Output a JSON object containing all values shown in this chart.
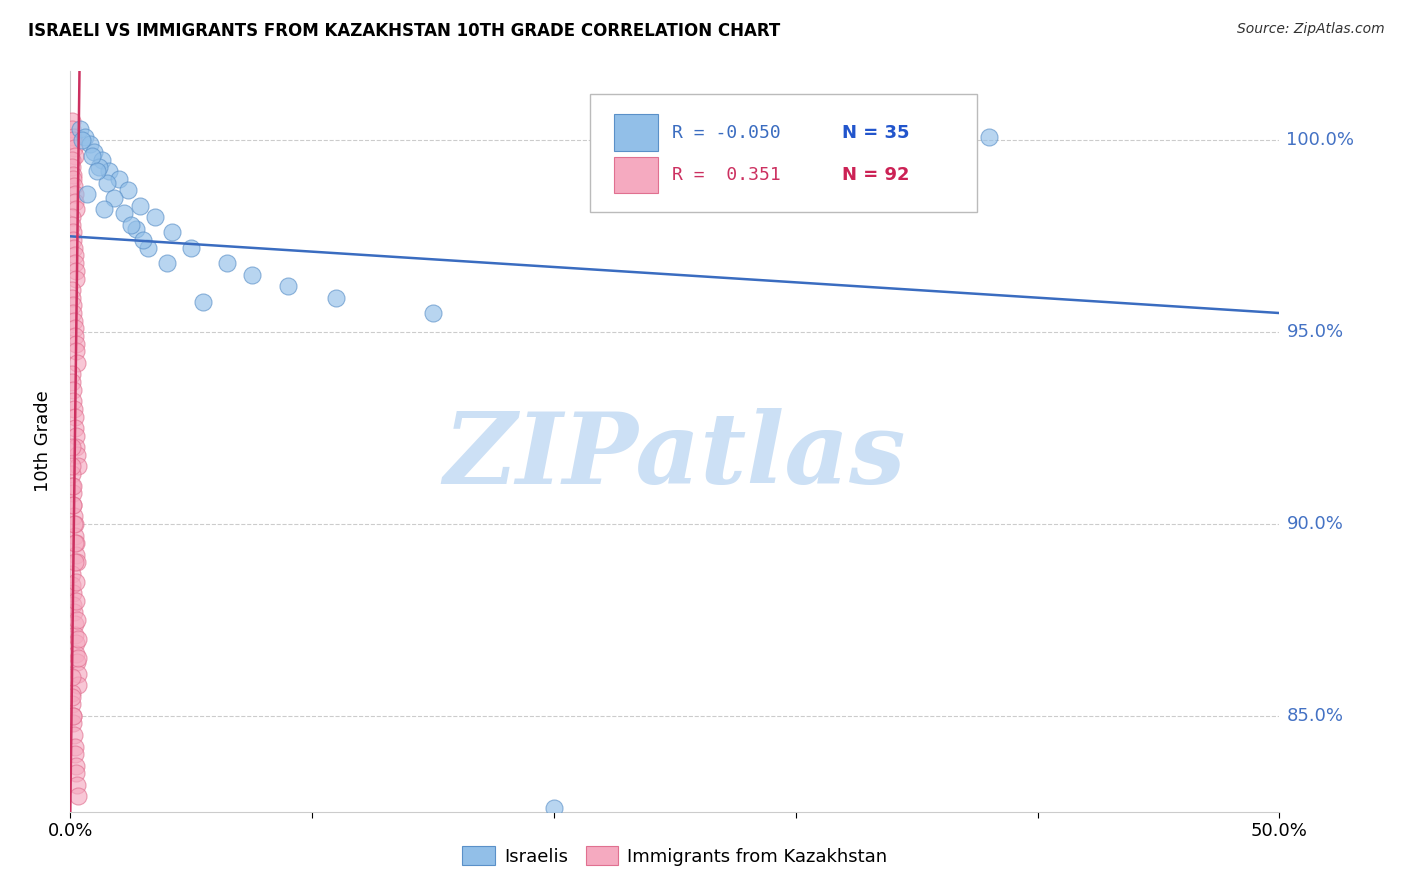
{
  "title": "ISRAELI VS IMMIGRANTS FROM KAZAKHSTAN 10TH GRADE CORRELATION CHART",
  "source": "Source: ZipAtlas.com",
  "ylabel": "10th Grade",
  "x_min": 0.0,
  "x_max": 50.0,
  "y_min": 82.5,
  "y_max": 101.8,
  "y_ticks": [
    85.0,
    90.0,
    95.0,
    100.0
  ],
  "x_ticks": [
    0.0,
    10.0,
    20.0,
    30.0,
    40.0,
    50.0
  ],
  "x_tick_labels": [
    "0.0%",
    "",
    "",
    "",
    "",
    "50.0%"
  ],
  "y_tick_labels": [
    "85.0%",
    "90.0%",
    "95.0%",
    "100.0%"
  ],
  "legend_blue_r": "R = -0.050",
  "legend_blue_n": "N = 35",
  "legend_pink_r": "R =  0.351",
  "legend_pink_n": "N = 92",
  "blue_color": "#92bfe8",
  "pink_color": "#f5aac0",
  "blue_edge_color": "#5a90c8",
  "pink_edge_color": "#e07090",
  "blue_line_color": "#3a6cc0",
  "pink_line_color": "#cc3060",
  "blue_n_color": "#2255cc",
  "pink_n_color": "#cc2255",
  "ytick_color": "#4472c4",
  "watermark": "ZIPatlas",
  "watermark_color": "#cce0f5",
  "blue_scatter_x": [
    0.4,
    0.6,
    0.8,
    1.0,
    1.3,
    1.6,
    2.0,
    2.4,
    2.9,
    3.5,
    4.2,
    5.0,
    1.2,
    1.5,
    1.8,
    2.2,
    2.7,
    3.2,
    4.0,
    0.5,
    0.9,
    1.1,
    0.7,
    1.4,
    2.5,
    3.0,
    5.5,
    34.0,
    38.0,
    20.0,
    6.5,
    7.5,
    9.0,
    11.0,
    15.0
  ],
  "blue_scatter_y": [
    100.3,
    100.1,
    99.9,
    99.7,
    99.5,
    99.2,
    99.0,
    98.7,
    98.3,
    98.0,
    97.6,
    97.2,
    99.3,
    98.9,
    98.5,
    98.1,
    97.7,
    97.2,
    96.8,
    100.0,
    99.6,
    99.2,
    98.6,
    98.2,
    97.8,
    97.4,
    95.8,
    100.2,
    100.1,
    82.6,
    96.8,
    96.5,
    96.2,
    95.9,
    95.5
  ],
  "pink_scatter_x": [
    0.05,
    0.08,
    0.1,
    0.12,
    0.15,
    0.18,
    0.05,
    0.08,
    0.1,
    0.12,
    0.15,
    0.18,
    0.2,
    0.22,
    0.05,
    0.08,
    0.1,
    0.12,
    0.15,
    0.18,
    0.2,
    0.22,
    0.25,
    0.05,
    0.08,
    0.1,
    0.12,
    0.15,
    0.18,
    0.2,
    0.22,
    0.25,
    0.28,
    0.05,
    0.08,
    0.1,
    0.12,
    0.15,
    0.18,
    0.2,
    0.22,
    0.25,
    0.28,
    0.3,
    0.05,
    0.08,
    0.1,
    0.12,
    0.15,
    0.18,
    0.2,
    0.22,
    0.25,
    0.28,
    0.05,
    0.08,
    0.1,
    0.12,
    0.15,
    0.18,
    0.2,
    0.22,
    0.25,
    0.28,
    0.3,
    0.33,
    0.05,
    0.08,
    0.1,
    0.12,
    0.15,
    0.18,
    0.2,
    0.22,
    0.25,
    0.28,
    0.3,
    0.05,
    0.08,
    0.1,
    0.12,
    0.15,
    0.18,
    0.2,
    0.22,
    0.25,
    0.28,
    0.3,
    0.33,
    0.05,
    0.08,
    0.1
  ],
  "pink_scatter_y": [
    100.5,
    100.3,
    100.1,
    100.0,
    99.8,
    99.6,
    99.5,
    99.3,
    99.1,
    99.0,
    98.8,
    98.6,
    98.4,
    98.2,
    98.0,
    97.8,
    97.6,
    97.4,
    97.2,
    97.0,
    96.8,
    96.6,
    96.4,
    96.1,
    95.9,
    95.7,
    95.5,
    95.3,
    95.1,
    94.9,
    94.7,
    94.5,
    94.2,
    93.9,
    93.7,
    93.5,
    93.2,
    93.0,
    92.8,
    92.5,
    92.3,
    92.0,
    91.8,
    91.5,
    91.3,
    91.0,
    90.8,
    90.5,
    90.2,
    90.0,
    89.7,
    89.5,
    89.2,
    89.0,
    88.7,
    88.4,
    88.2,
    87.9,
    87.7,
    87.4,
    87.1,
    86.9,
    86.6,
    86.4,
    86.1,
    85.8,
    85.6,
    85.3,
    85.0,
    84.8,
    84.5,
    84.2,
    84.0,
    83.7,
    83.5,
    83.2,
    82.9,
    92.0,
    91.5,
    91.0,
    90.5,
    90.0,
    89.5,
    89.0,
    88.5,
    88.0,
    87.5,
    87.0,
    86.5,
    86.0,
    85.5,
    85.0
  ],
  "blue_trend_x": [
    0.0,
    50.0
  ],
  "blue_trend_y": [
    97.5,
    95.5
  ],
  "pink_trend_x": [
    0.0,
    0.38
  ],
  "pink_trend_y": [
    82.5,
    101.8
  ]
}
